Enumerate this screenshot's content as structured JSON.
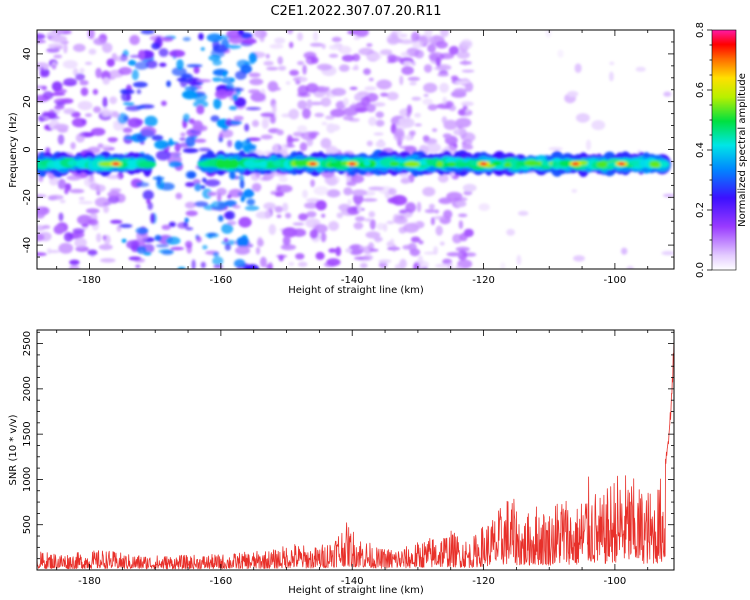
{
  "title": "C2E1.2022.307.07.20.R11",
  "chart_data": [
    {
      "type": "heatmap",
      "xlabel": "Height of straight line (km)",
      "ylabel": "Frequency (Hz)",
      "xlim": [
        -188,
        -91
      ],
      "ylim": [
        -50,
        50
      ],
      "xticks": [
        -180,
        -160,
        -140,
        -120,
        -100
      ],
      "yticks": [
        -40,
        -20,
        0,
        20,
        40
      ],
      "colorbar": {
        "label": "Normalized spectral amplitude",
        "range": [
          0.0,
          0.8
        ],
        "ticks": [
          "0.0",
          "0.2",
          "0.4",
          "0.6",
          "0.8"
        ]
      },
      "dominant_band": {
        "frequency_hz": -6,
        "x_range": [
          -188,
          -92
        ],
        "gap_x_range": [
          -171,
          -163
        ]
      },
      "noise_regions": [
        {
          "x_range": [
            -188,
            -170
          ],
          "level": 0.15
        },
        {
          "x_range": [
            -175,
            -155
          ],
          "level": 0.35
        },
        {
          "x_range": [
            -155,
            -122
          ],
          "level": 0.12
        }
      ],
      "hotspots_x": [
        -176,
        -146,
        -140,
        -120,
        -106,
        -99
      ]
    },
    {
      "type": "line",
      "xlabel": "Height of straight line (km)",
      "ylabel": "SNR (10 * v/v)",
      "xlim": [
        -188,
        -91
      ],
      "ylim": [
        0,
        2650
      ],
      "xticks": [
        -180,
        -160,
        -140,
        -120,
        -100
      ],
      "yticks": [
        500,
        1000,
        1500,
        2000,
        2500
      ],
      "series": [
        {
          "color": "#e8302a",
          "envelope_x": [
            -188,
            -183,
            -178,
            -174,
            -170,
            -165,
            -160,
            -155,
            -152,
            -149,
            -146,
            -144,
            -141,
            -139,
            -136,
            -132,
            -128,
            -125,
            -122,
            -120,
            -118,
            -116,
            -114,
            -112,
            -110,
            -108,
            -106,
            -104,
            -102,
            -100,
            -98,
            -96,
            -94,
            -92.5,
            -91.5,
            -91
          ],
          "envelope_y": [
            200,
            180,
            220,
            170,
            160,
            160,
            170,
            200,
            220,
            300,
            240,
            300,
            520,
            380,
            230,
            250,
            360,
            430,
            320,
            500,
            620,
            850,
            560,
            720,
            640,
            880,
            660,
            1000,
            760,
            1060,
            1050,
            900,
            860,
            1100,
            1800,
            2650
          ]
        }
      ]
    }
  ]
}
